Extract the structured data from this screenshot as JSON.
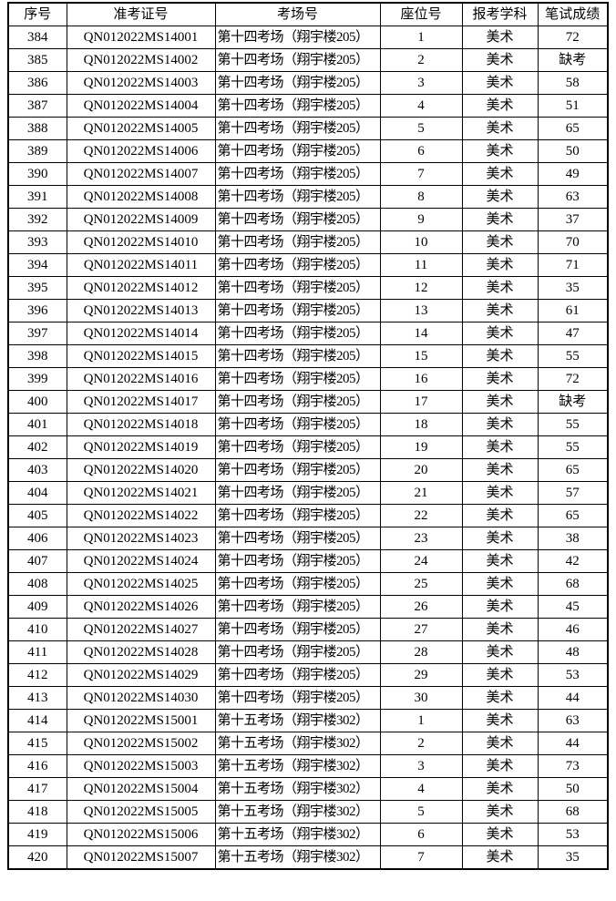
{
  "table": {
    "headers": [
      "序号",
      "准考证号",
      "考场号",
      "座位号",
      "报考学科",
      "笔试成绩"
    ],
    "header_keys": [
      "serial",
      "admission-number",
      "room",
      "seat",
      "subject",
      "score"
    ],
    "rows": [
      [
        "384",
        "QN012022MS14001",
        "第十四考场（翔宇楼205）",
        "1",
        "美术",
        "72"
      ],
      [
        "385",
        "QN012022MS14002",
        "第十四考场（翔宇楼205）",
        "2",
        "美术",
        "缺考"
      ],
      [
        "386",
        "QN012022MS14003",
        "第十四考场（翔宇楼205）",
        "3",
        "美术",
        "58"
      ],
      [
        "387",
        "QN012022MS14004",
        "第十四考场（翔宇楼205）",
        "4",
        "美术",
        "51"
      ],
      [
        "388",
        "QN012022MS14005",
        "第十四考场（翔宇楼205）",
        "5",
        "美术",
        "65"
      ],
      [
        "389",
        "QN012022MS14006",
        "第十四考场（翔宇楼205）",
        "6",
        "美术",
        "50"
      ],
      [
        "390",
        "QN012022MS14007",
        "第十四考场（翔宇楼205）",
        "7",
        "美术",
        "49"
      ],
      [
        "391",
        "QN012022MS14008",
        "第十四考场（翔宇楼205）",
        "8",
        "美术",
        "63"
      ],
      [
        "392",
        "QN012022MS14009",
        "第十四考场（翔宇楼205）",
        "9",
        "美术",
        "37"
      ],
      [
        "393",
        "QN012022MS14010",
        "第十四考场（翔宇楼205）",
        "10",
        "美术",
        "70"
      ],
      [
        "394",
        "QN012022MS14011",
        "第十四考场（翔宇楼205）",
        "11",
        "美术",
        "71"
      ],
      [
        "395",
        "QN012022MS14012",
        "第十四考场（翔宇楼205）",
        "12",
        "美术",
        "35"
      ],
      [
        "396",
        "QN012022MS14013",
        "第十四考场（翔宇楼205）",
        "13",
        "美术",
        "61"
      ],
      [
        "397",
        "QN012022MS14014",
        "第十四考场（翔宇楼205）",
        "14",
        "美术",
        "47"
      ],
      [
        "398",
        "QN012022MS14015",
        "第十四考场（翔宇楼205）",
        "15",
        "美术",
        "55"
      ],
      [
        "399",
        "QN012022MS14016",
        "第十四考场（翔宇楼205）",
        "16",
        "美术",
        "72"
      ],
      [
        "400",
        "QN012022MS14017",
        "第十四考场（翔宇楼205）",
        "17",
        "美术",
        "缺考"
      ],
      [
        "401",
        "QN012022MS14018",
        "第十四考场（翔宇楼205）",
        "18",
        "美术",
        "55"
      ],
      [
        "402",
        "QN012022MS14019",
        "第十四考场（翔宇楼205）",
        "19",
        "美术",
        "55"
      ],
      [
        "403",
        "QN012022MS14020",
        "第十四考场（翔宇楼205）",
        "20",
        "美术",
        "65"
      ],
      [
        "404",
        "QN012022MS14021",
        "第十四考场（翔宇楼205）",
        "21",
        "美术",
        "57"
      ],
      [
        "405",
        "QN012022MS14022",
        "第十四考场（翔宇楼205）",
        "22",
        "美术",
        "65"
      ],
      [
        "406",
        "QN012022MS14023",
        "第十四考场（翔宇楼205）",
        "23",
        "美术",
        "38"
      ],
      [
        "407",
        "QN012022MS14024",
        "第十四考场（翔宇楼205）",
        "24",
        "美术",
        "42"
      ],
      [
        "408",
        "QN012022MS14025",
        "第十四考场（翔宇楼205）",
        "25",
        "美术",
        "68"
      ],
      [
        "409",
        "QN012022MS14026",
        "第十四考场（翔宇楼205）",
        "26",
        "美术",
        "45"
      ],
      [
        "410",
        "QN012022MS14027",
        "第十四考场（翔宇楼205）",
        "27",
        "美术",
        "46"
      ],
      [
        "411",
        "QN012022MS14028",
        "第十四考场（翔宇楼205）",
        "28",
        "美术",
        "48"
      ],
      [
        "412",
        "QN012022MS14029",
        "第十四考场（翔宇楼205）",
        "29",
        "美术",
        "53"
      ],
      [
        "413",
        "QN012022MS14030",
        "第十四考场（翔宇楼205）",
        "30",
        "美术",
        "44"
      ],
      [
        "414",
        "QN012022MS15001",
        "第十五考场（翔宇楼302）",
        "1",
        "美术",
        "63"
      ],
      [
        "415",
        "QN012022MS15002",
        "第十五考场（翔宇楼302）",
        "2",
        "美术",
        "44"
      ],
      [
        "416",
        "QN012022MS15003",
        "第十五考场（翔宇楼302）",
        "3",
        "美术",
        "73"
      ],
      [
        "417",
        "QN012022MS15004",
        "第十五考场（翔宇楼302）",
        "4",
        "美术",
        "50"
      ],
      [
        "418",
        "QN012022MS15005",
        "第十五考场（翔宇楼302）",
        "5",
        "美术",
        "68"
      ],
      [
        "419",
        "QN012022MS15006",
        "第十五考场（翔宇楼302）",
        "6",
        "美术",
        "53"
      ],
      [
        "420",
        "QN012022MS15007",
        "第十五考场（翔宇楼302）",
        "7",
        "美术",
        "35"
      ]
    ]
  },
  "colors": {
    "border": "#000000",
    "background": "#ffffff",
    "text": "#000000"
  }
}
